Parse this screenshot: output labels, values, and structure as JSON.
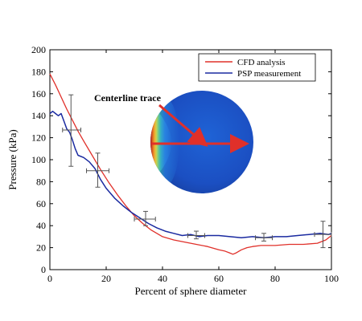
{
  "chart_data": {
    "type": "line",
    "xlabel": "Percent of sphere diameter",
    "ylabel": "Pressure (kPa)",
    "xlim": [
      0,
      100
    ],
    "ylim": [
      0,
      200
    ],
    "x_ticks": [
      0,
      20,
      40,
      60,
      80,
      100
    ],
    "y_ticks": [
      0,
      20,
      40,
      60,
      80,
      100,
      120,
      140,
      160,
      180,
      200
    ],
    "grid": false,
    "legend_position": "top-right",
    "series": [
      {
        "name": "CFD analysis",
        "color": "#e0302a",
        "x": [
          0,
          2,
          4,
          6,
          8,
          10,
          12,
          15,
          18,
          21,
          24,
          27,
          30,
          33,
          36,
          40,
          44,
          48,
          52,
          56,
          60,
          62,
          64,
          65,
          66,
          68,
          70,
          72,
          75,
          80,
          85,
          90,
          95,
          98,
          100
        ],
        "y": [
          178,
          168,
          157,
          146,
          136,
          126,
          117,
          104,
          91,
          79,
          68,
          58,
          49,
          42,
          36,
          30,
          27,
          25,
          23,
          21,
          18,
          17,
          15,
          14,
          15,
          18,
          20,
          21,
          22,
          22,
          23,
          23,
          24,
          27,
          31
        ]
      },
      {
        "name": "PSP measurement",
        "color": "#1a2aa0",
        "x": [
          0,
          1,
          2,
          3,
          4,
          5,
          6,
          7,
          8,
          9,
          10,
          12,
          14,
          16,
          18,
          20,
          23,
          26,
          29,
          32,
          35,
          38,
          41,
          44,
          47,
          50,
          53,
          56,
          60,
          64,
          68,
          72,
          76,
          80,
          84,
          88,
          92,
          96,
          99,
          100
        ],
        "y": [
          142,
          144,
          142,
          140,
          142,
          135,
          128,
          125,
          118,
          110,
          104,
          102,
          98,
          92,
          82,
          74,
          65,
          58,
          52,
          47,
          42,
          38,
          35,
          33,
          31,
          32,
          30,
          31,
          31,
          30,
          29,
          30,
          29,
          30,
          30,
          31,
          32,
          33,
          32,
          33
        ]
      }
    ],
    "error_bars": [
      {
        "x": 7.5,
        "y": 127,
        "ylo": 94,
        "yhi": 159,
        "xlo": 4.5,
        "xhi": 11
      },
      {
        "x": 17,
        "y": 90,
        "ylo": 75,
        "yhi": 106,
        "xlo": 13,
        "xhi": 21
      },
      {
        "x": 34,
        "y": 46,
        "ylo": 40,
        "yhi": 53,
        "xlo": 30,
        "xhi": 37.5
      },
      {
        "x": 52,
        "y": 31,
        "ylo": 28,
        "yhi": 35,
        "xlo": 49,
        "xhi": 55
      },
      {
        "x": 76,
        "y": 29,
        "ylo": 26,
        "yhi": 33,
        "xlo": 73,
        "xhi": 79
      },
      {
        "x": 97,
        "y": 32,
        "ylo": 20,
        "yhi": 44,
        "xlo": 94,
        "xhi": 100
      }
    ],
    "annotation": "Centerline trace"
  }
}
